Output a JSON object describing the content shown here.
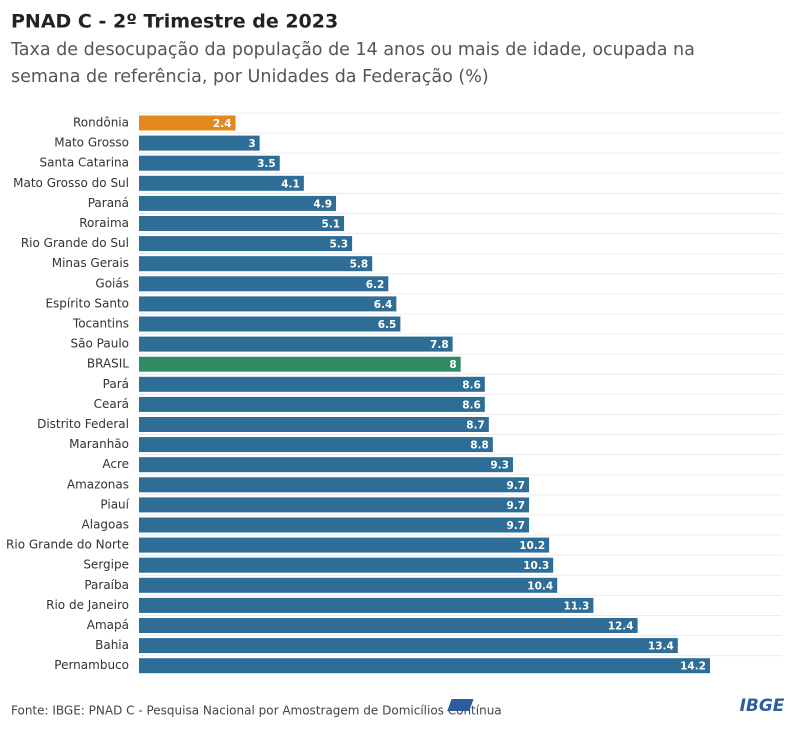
{
  "chart_data": {
    "type": "bar",
    "orientation": "horizontal",
    "title": "PNAD C - 2º Trimestre de 2023",
    "subtitle": [
      "Taxa de desocupação da população de 14 anos ou mais de idade, ocupada na",
      "semana de referência, por Unidades da Federação (%)"
    ],
    "source": "Fonte: IBGE: PNAD C - Pesquisa Nacional por Amostragem de Domicílios Contínua",
    "logo": "IBGE",
    "categories": [
      "Rondônia",
      "Mato Grosso",
      "Santa Catarina",
      "Mato Grosso do Sul",
      "Paraná",
      "Roraima",
      "Rio Grande do Sul",
      "Minas Gerais",
      "Goiás",
      "Espírito Santo",
      "Tocantins",
      "São Paulo",
      "BRASIL",
      "Pará",
      "Ceará",
      "Distrito Federal",
      "Maranhão",
      "Acre",
      "Amazonas",
      "Piauí",
      "Alagoas",
      "Rio Grande do Norte",
      "Sergipe",
      "Paraíba",
      "Rio de Janeiro",
      "Amapá",
      "Bahia",
      "Pernambuco"
    ],
    "values": [
      2.4,
      3,
      3.5,
      4.1,
      4.9,
      5.1,
      5.3,
      5.8,
      6.2,
      6.4,
      6.5,
      7.8,
      8,
      8.6,
      8.6,
      8.7,
      8.8,
      9.3,
      9.7,
      9.7,
      9.7,
      10.2,
      10.3,
      10.4,
      11.3,
      12.4,
      13.4,
      14.2
    ],
    "colors": [
      "#e3891e",
      "#2d6d96",
      "#2d6d96",
      "#2d6d96",
      "#2d6d96",
      "#2d6d96",
      "#2d6d96",
      "#2d6d96",
      "#2d6d96",
      "#2d6d96",
      "#2d6d96",
      "#2d6d96",
      "#2f8b63",
      "#2d6d96",
      "#2d6d96",
      "#2d6d96",
      "#2d6d96",
      "#2d6d96",
      "#2d6d96",
      "#2d6d96",
      "#2d6d96",
      "#2d6d96",
      "#2d6d96",
      "#2d6d96",
      "#2d6d96",
      "#2d6d96",
      "#2d6d96",
      "#2d6d96"
    ]
  }
}
